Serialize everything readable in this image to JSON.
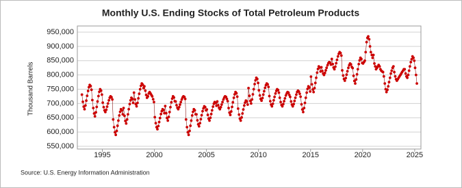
{
  "chart_data": {
    "type": "line",
    "title": "Monthly U.S. Ending Stocks of Total Petroleum Products",
    "y_label": "Thousand Barrels",
    "source": "Source: U.S. Energy Information Administration",
    "xlim": [
      1992.6,
      2025.6
    ],
    "xticks": [
      1995,
      2000,
      2005,
      2010,
      2015,
      2020,
      2025
    ],
    "ylim": [
      550000,
      950000
    ],
    "yticks": [
      {
        "value": 550000,
        "label": "550,000"
      },
      {
        "value": 600000,
        "label": "600,000"
      },
      {
        "value": 650000,
        "label": "650,000"
      },
      {
        "value": 700000,
        "label": "700,000"
      },
      {
        "value": 750000,
        "label": "750,000"
      },
      {
        "value": 800000,
        "label": "800,000"
      },
      {
        "value": 850000,
        "label": "850,000"
      },
      {
        "value": 900000,
        "label": "900,000"
      },
      {
        "value": 950000,
        "label": "950,000"
      }
    ],
    "grid": true,
    "x": [
      1993.04,
      1993.13,
      1993.21,
      1993.29,
      1993.38,
      1993.46,
      1993.54,
      1993.63,
      1993.71,
      1993.79,
      1993.88,
      1993.96,
      1994.04,
      1994.13,
      1994.21,
      1994.29,
      1994.38,
      1994.46,
      1994.54,
      1994.63,
      1994.71,
      1994.79,
      1994.88,
      1994.96,
      1995.04,
      1995.13,
      1995.21,
      1995.29,
      1995.38,
      1995.46,
      1995.54,
      1995.63,
      1995.71,
      1995.79,
      1995.88,
      1995.96,
      1996.04,
      1996.13,
      1996.21,
      1996.29,
      1996.38,
      1996.46,
      1996.54,
      1996.63,
      1996.71,
      1996.79,
      1996.88,
      1996.96,
      1997.04,
      1997.13,
      1997.21,
      1997.29,
      1997.38,
      1997.46,
      1997.54,
      1997.63,
      1997.71,
      1997.79,
      1997.88,
      1997.96,
      1998.04,
      1998.13,
      1998.21,
      1998.29,
      1998.38,
      1998.46,
      1998.54,
      1998.63,
      1998.71,
      1998.79,
      1998.88,
      1998.96,
      1999.04,
      1999.13,
      1999.21,
      1999.29,
      1999.38,
      1999.46,
      1999.54,
      1999.63,
      1999.71,
      1999.79,
      1999.88,
      1999.96,
      2000.04,
      2000.13,
      2000.21,
      2000.29,
      2000.38,
      2000.46,
      2000.54,
      2000.63,
      2000.71,
      2000.79,
      2000.88,
      2000.96,
      2001.04,
      2001.13,
      2001.21,
      2001.29,
      2001.38,
      2001.46,
      2001.54,
      2001.63,
      2001.71,
      2001.79,
      2001.88,
      2001.96,
      2002.04,
      2002.13,
      2002.21,
      2002.29,
      2002.38,
      2002.46,
      2002.54,
      2002.63,
      2002.71,
      2002.79,
      2002.88,
      2002.96,
      2003.04,
      2003.13,
      2003.21,
      2003.29,
      2003.38,
      2003.46,
      2003.54,
      2003.63,
      2003.71,
      2003.79,
      2003.88,
      2003.96,
      2004.04,
      2004.13,
      2004.21,
      2004.29,
      2004.38,
      2004.46,
      2004.54,
      2004.63,
      2004.71,
      2004.79,
      2004.88,
      2004.96,
      2005.04,
      2005.13,
      2005.21,
      2005.29,
      2005.38,
      2005.46,
      2005.54,
      2005.63,
      2005.71,
      2005.79,
      2005.88,
      2005.96,
      2006.04,
      2006.13,
      2006.21,
      2006.29,
      2006.38,
      2006.46,
      2006.54,
      2006.63,
      2006.71,
      2006.79,
      2006.88,
      2006.96,
      2007.04,
      2007.13,
      2007.21,
      2007.29,
      2007.38,
      2007.46,
      2007.54,
      2007.63,
      2007.71,
      2007.79,
      2007.88,
      2007.96,
      2008.04,
      2008.13,
      2008.21,
      2008.29,
      2008.38,
      2008.46,
      2008.54,
      2008.63,
      2008.71,
      2008.79,
      2008.88,
      2008.96,
      2009.04,
      2009.13,
      2009.21,
      2009.29,
      2009.38,
      2009.46,
      2009.54,
      2009.63,
      2009.71,
      2009.79,
      2009.88,
      2009.96,
      2010.04,
      2010.13,
      2010.21,
      2010.29,
      2010.38,
      2010.46,
      2010.54,
      2010.63,
      2010.71,
      2010.79,
      2010.88,
      2010.96,
      2011.04,
      2011.13,
      2011.21,
      2011.29,
      2011.38,
      2011.46,
      2011.54,
      2011.63,
      2011.71,
      2011.79,
      2011.88,
      2011.96,
      2012.04,
      2012.13,
      2012.21,
      2012.29,
      2012.38,
      2012.46,
      2012.54,
      2012.63,
      2012.71,
      2012.79,
      2012.88,
      2012.96,
      2013.04,
      2013.13,
      2013.21,
      2013.29,
      2013.38,
      2013.46,
      2013.54,
      2013.63,
      2013.71,
      2013.79,
      2013.88,
      2013.96,
      2014.04,
      2014.13,
      2014.21,
      2014.29,
      2014.38,
      2014.46,
      2014.54,
      2014.63,
      2014.71,
      2014.79,
      2014.88,
      2014.96,
      2015.04,
      2015.13,
      2015.21,
      2015.29,
      2015.38,
      2015.46,
      2015.54,
      2015.63,
      2015.71,
      2015.79,
      2015.88,
      2015.96,
      2016.04,
      2016.13,
      2016.21,
      2016.29,
      2016.38,
      2016.46,
      2016.54,
      2016.63,
      2016.71,
      2016.79,
      2016.88,
      2016.96,
      2017.04,
      2017.13,
      2017.21,
      2017.29,
      2017.38,
      2017.46,
      2017.54,
      2017.63,
      2017.71,
      2017.79,
      2017.88,
      2017.96,
      2018.04,
      2018.13,
      2018.21,
      2018.29,
      2018.38,
      2018.46,
      2018.54,
      2018.63,
      2018.71,
      2018.79,
      2018.88,
      2018.96,
      2019.04,
      2019.13,
      2019.21,
      2019.29,
      2019.38,
      2019.46,
      2019.54,
      2019.63,
      2019.71,
      2019.79,
      2019.88,
      2019.96,
      2020.04,
      2020.13,
      2020.21,
      2020.29,
      2020.38,
      2020.46,
      2020.54,
      2020.63,
      2020.71,
      2020.79,
      2020.88,
      2020.96,
      2021.04,
      2021.13,
      2021.21,
      2021.29,
      2021.38,
      2021.46,
      2021.54,
      2021.63,
      2021.71,
      2021.79,
      2021.88,
      2021.96,
      2022.04,
      2022.13,
      2022.21,
      2022.29,
      2022.38,
      2022.46,
      2022.54,
      2022.63,
      2022.71,
      2022.79,
      2022.88,
      2022.96,
      2023.04,
      2023.13,
      2023.21,
      2023.29,
      2023.38,
      2023.46,
      2023.54,
      2023.63,
      2023.71,
      2023.79,
      2023.88,
      2023.96,
      2024.04,
      2024.13,
      2024.21,
      2024.29,
      2024.38,
      2024.46,
      2024.54,
      2024.63,
      2024.71,
      2024.79,
      2024.88,
      2024.96,
      2025.04,
      2025.13,
      2025.21
    ],
    "series": [
      {
        "color": "#cc0000",
        "line_color": "#8b1a1a",
        "values": [
          731000,
          706000,
          689000,
          680000,
          693000,
          710000,
          727000,
          744000,
          757000,
          765000,
          761000,
          748000,
          712000,
          684000,
          665000,
          655000,
          669000,
          688000,
          707000,
          726000,
          741000,
          750000,
          745000,
          731000,
          703000,
          687000,
          676000,
          670000,
          678000,
          689000,
          700000,
          711000,
          720000,
          725000,
          722000,
          714000,
          644000,
          617000,
          599000,
          590000,
          604000,
          622000,
          640000,
          658000,
          671000,
          680000,
          676000,
          662000,
          684000,
          657000,
          639000,
          630000,
          644000,
          662000,
          680000,
          698000,
          711000,
          720000,
          716000,
          702000,
          738000,
          714000,
          698000,
          690000,
          702000,
          718000,
          734000,
          750000,
          762000,
          770000,
          766000,
          754000,
          760000,
          745000,
          730000,
          720000,
          725000,
          735000,
          740000,
          735000,
          730000,
          725000,
          715000,
          705000,
          652000,
          631000,
          617000,
          610000,
          621000,
          635000,
          649000,
          663000,
          673000,
          680000,
          677000,
          666000,
          691000,
          666000,
          649000,
          640000,
          653000,
          670000,
          687000,
          704000,
          717000,
          725000,
          721000,
          708000,
          707000,
          694000,
          685000,
          680000,
          687000,
          696000,
          705000,
          714000,
          721000,
          725000,
          723000,
          716000,
          644000,
          617000,
          599000,
          590000,
          604000,
          622000,
          640000,
          658000,
          671000,
          680000,
          676000,
          662000,
          662000,
          641000,
          627000,
          620000,
          631000,
          645000,
          659000,
          673000,
          683000,
          690000,
          687000,
          676000,
          679000,
          660000,
          647000,
          640000,
          650000,
          663000,
          676000,
          689000,
          699000,
          705000,
          702000,
          692000,
          707000,
          694000,
          685000,
          680000,
          687000,
          696000,
          705000,
          714000,
          721000,
          725000,
          723000,
          716000,
          708000,
          684000,
          668000,
          660000,
          672000,
          688000,
          704000,
          720000,
          732000,
          740000,
          736000,
          724000,
          682000,
          661000,
          647000,
          640000,
          651000,
          665000,
          679000,
          693000,
          703000,
          710000,
          707000,
          696000,
          754000,
          727000,
          709000,
          700000,
          714000,
          732000,
          750000,
          768000,
          781000,
          790000,
          786000,
          772000,
          746000,
          728000,
          716000,
          710000,
          719000,
          731000,
          743000,
          755000,
          764000,
          770000,
          767000,
          758000,
          726000,
          708000,
          696000,
          690000,
          699000,
          711000,
          723000,
          735000,
          744000,
          750000,
          747000,
          738000,
          720000,
          705000,
          695000,
          690000,
          698000,
          708000,
          718000,
          728000,
          735000,
          740000,
          738000,
          730000,
          723000,
          707000,
          696000,
          690000,
          698000,
          709000,
          720000,
          731000,
          740000,
          745000,
          742000,
          734000,
          724000,
          697000,
          679000,
          670000,
          684000,
          702000,
          720000,
          738000,
          751000,
          760000,
          756000,
          742000,
          794000,
          767000,
          749000,
          740000,
          754000,
          772000,
          790000,
          808000,
          821000,
          830000,
          826000,
          812000,
          827000,
          814000,
          805000,
          800000,
          807000,
          816000,
          825000,
          834000,
          841000,
          845000,
          843000,
          836000,
          856000,
          838000,
          826000,
          820000,
          829000,
          841000,
          853000,
          865000,
          874000,
          880000,
          877000,
          868000,
          816000,
          798000,
          786000,
          780000,
          789000,
          801000,
          813000,
          825000,
          834000,
          840000,
          837000,
          828000,
          824000,
          797000,
          779000,
          770000,
          784000,
          802000,
          820000,
          838000,
          851000,
          860000,
          856000,
          842000,
          840000,
          845000,
          850000,
          880000,
          915000,
          930000,
          935000,
          925000,
          900000,
          880000,
          870000,
          860000,
          870000,
          840000,
          830000,
          820000,
          825000,
          830000,
          835000,
          830000,
          820000,
          815000,
          812000,
          810000,
          795000,
          770000,
          750000,
          740000,
          748000,
          760000,
          775000,
          790000,
          805000,
          815000,
          825000,
          830000,
          810000,
          795000,
          785000,
          780000,
          785000,
          790000,
          795000,
          800000,
          805000,
          810000,
          815000,
          820000,
          820000,
          805000,
          795000,
          790000,
          800000,
          815000,
          830000,
          845000,
          855000,
          865000,
          860000,
          850000,
          825000,
          800000,
          770000
        ]
      }
    ]
  }
}
